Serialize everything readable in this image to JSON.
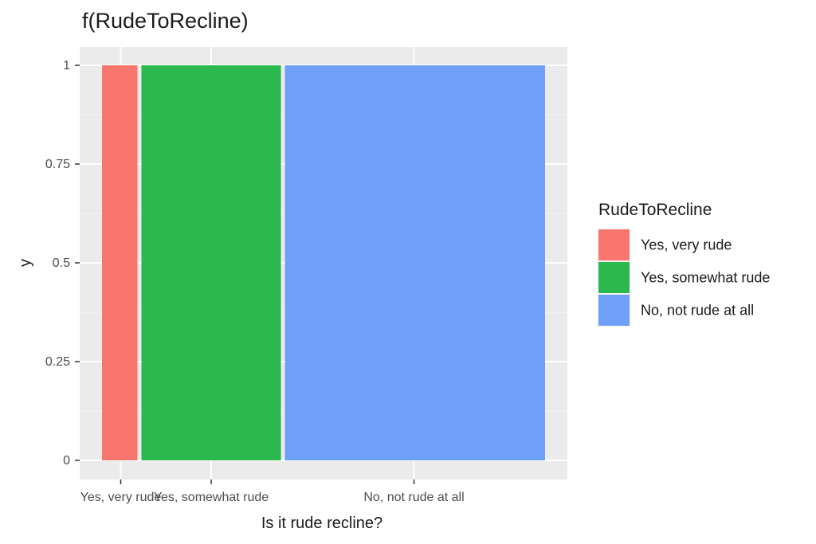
{
  "chart_data": {
    "type": "bar",
    "variant": "variable-width stacked proportion (spinogram)",
    "title": "f(RudeToRecline)",
    "xlabel": "Is it rude recline?",
    "ylabel": "y",
    "ylim": [
      0,
      1
    ],
    "yticks": [
      "0",
      "0.25",
      "0.5",
      "0.75",
      "1"
    ],
    "ytick_values": [
      0,
      0.25,
      0.5,
      0.75,
      1
    ],
    "grid": true,
    "categories": [
      "Yes, very rude",
      "Yes, somewhat rude",
      "No, not rude at all"
    ],
    "x_tick_labels": [
      "Yes, very rude",
      "Yes, somewhat rude",
      "No, not rude at all"
    ],
    "widths": [
      0.083,
      0.318,
      0.581
    ],
    "values": [
      1,
      1,
      1
    ],
    "colors": [
      "#F8766D",
      "#2BB94F",
      "#6EA0F8"
    ],
    "legend": {
      "title": "RudeToRecline",
      "placement": "right",
      "entries": [
        "Yes, very rude",
        "Yes, somewhat rude",
        "No, not rude at all"
      ]
    }
  }
}
